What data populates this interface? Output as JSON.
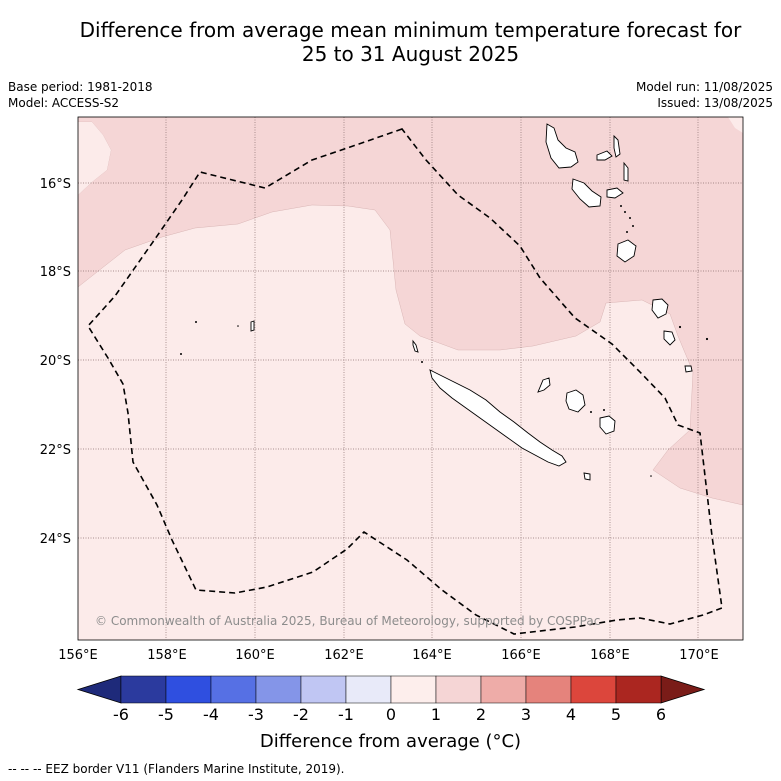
{
  "title": {
    "line1": "Difference from average mean minimum temperature forecast for",
    "line2": "25 to 31 August 2025"
  },
  "meta": {
    "base_period": "Base period: 1981-2018",
    "model": "Model: ACCESS-S2",
    "model_run": "Model run: 11/08/2025",
    "issued": "Issued: 13/08/2025"
  },
  "map": {
    "lat_labels": [
      "16°S",
      "18°S",
      "20°S",
      "22°S",
      "24°S"
    ],
    "lon_labels": [
      "156°E",
      "158°E",
      "160°E",
      "162°E",
      "164°E",
      "166°E",
      "168°E",
      "170°E"
    ],
    "copyright": "© Commonwealth of Australia 2025, Bureau of Meteorology, supported by COSPPac",
    "zone_colors": {
      "zero_to_one": "#fcebea",
      "one_to_two": "#f5d6d6"
    }
  },
  "colorbar": {
    "ticks": [
      "-6",
      "-5",
      "-4",
      "-3",
      "-2",
      "-1",
      "0",
      "1",
      "2",
      "3",
      "4",
      "5",
      "6"
    ],
    "colors": [
      "#2b3a9e",
      "#2f4fe0",
      "#5670e4",
      "#8495e8",
      "#c0c6f3",
      "#e8eaf9",
      "#fdeeec",
      "#f5d5d5",
      "#eeaca8",
      "#e5837c",
      "#dc463c",
      "#ab2620"
    ],
    "under_color": "#1e2a7a",
    "over_color": "#7a1c18",
    "label": "Difference from average (°C)"
  },
  "footnote": "--  --  -- EEZ border V11 (Flanders Marine Institute, 2019)."
}
